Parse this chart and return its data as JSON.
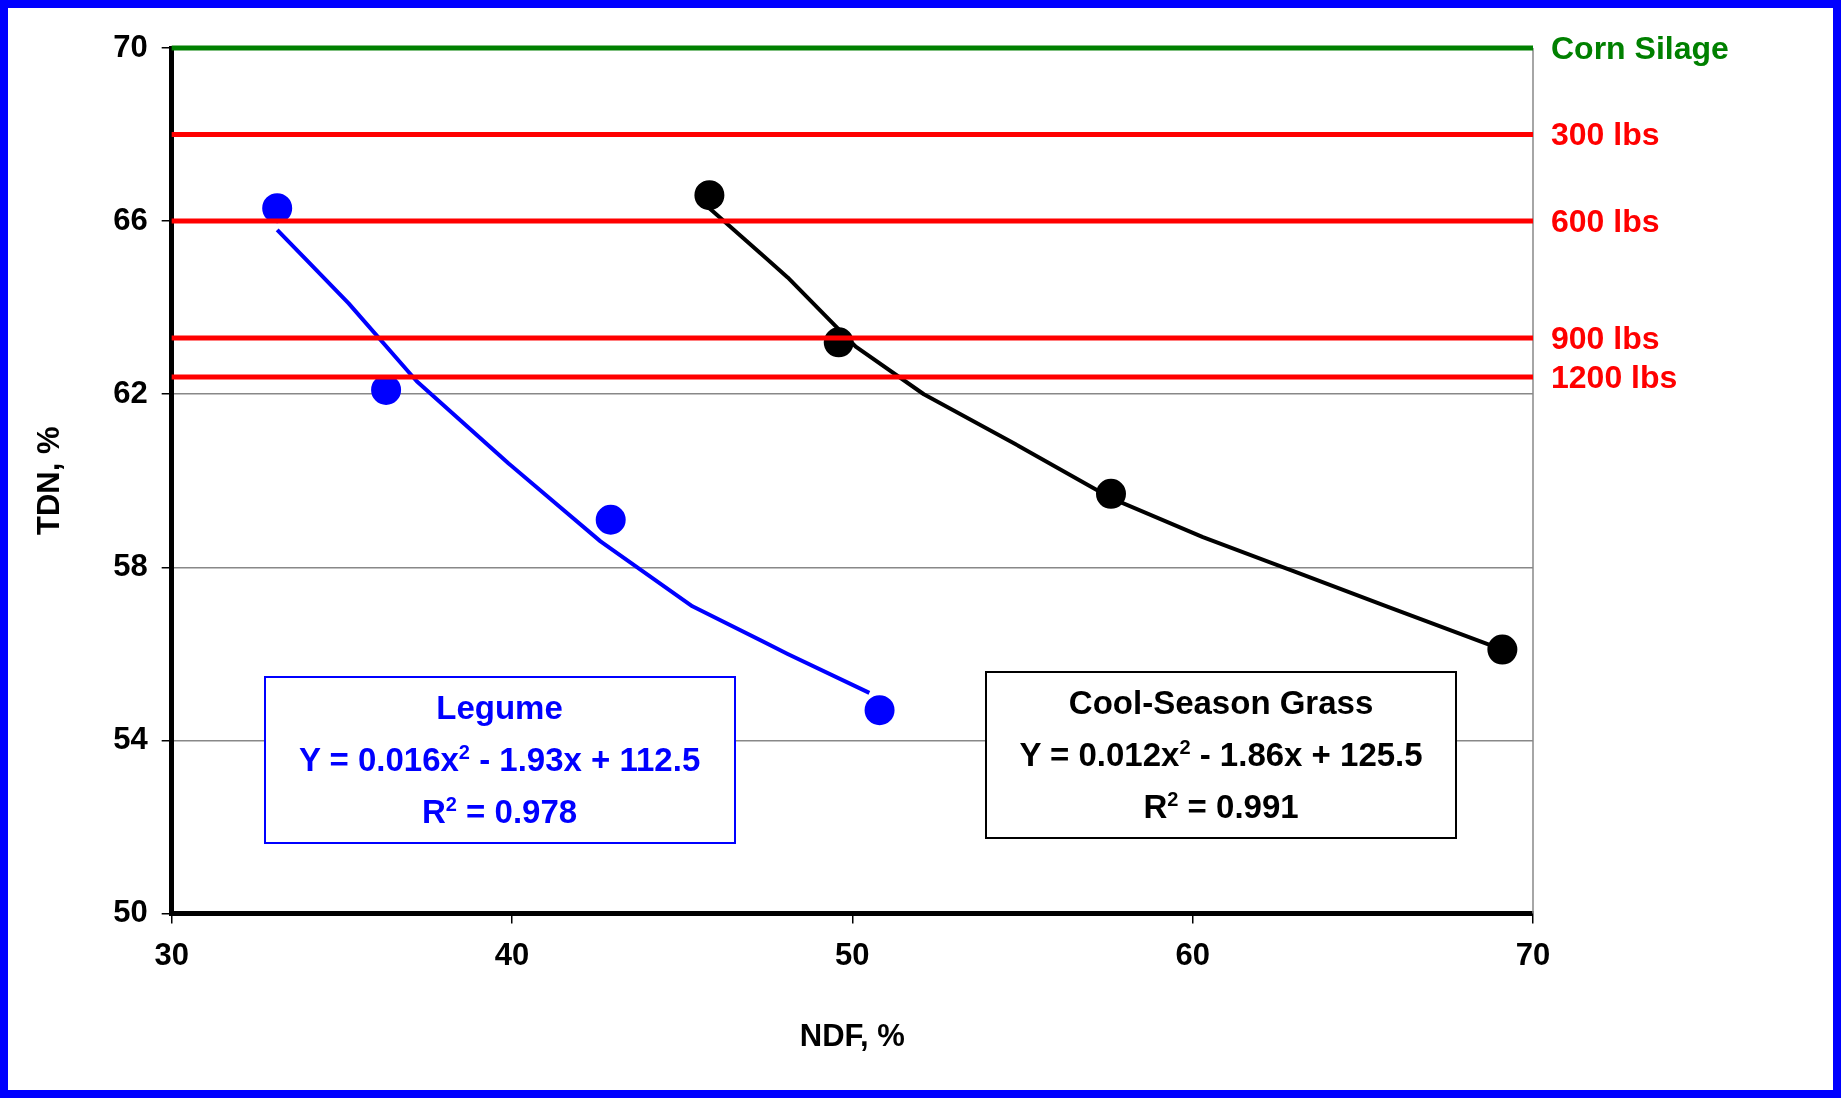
{
  "chart_data": {
    "type": "scatter",
    "xlabel": "NDF, %",
    "ylabel": "TDN, %",
    "xlim": [
      30,
      70
    ],
    "xticks": [
      30,
      40,
      50,
      60,
      70
    ],
    "ylim": [
      50,
      70
    ],
    "yticks": [
      50,
      54,
      58,
      62,
      66,
      70
    ],
    "grid": "y",
    "legend": false,
    "series": [
      {
        "type": "scatter",
        "name": "Legume",
        "color": "#0000ff",
        "marker": "circle",
        "x": [
          33.1,
          36.3,
          42.9,
          50.8
        ],
        "values": [
          66.3,
          62.1,
          59.1,
          54.7
        ]
      },
      {
        "type": "line",
        "color": "#0000ff",
        "marker": "none",
        "line_style": "solid",
        "x": [
          33.1,
          35.2,
          37.2,
          39.9,
          42.6,
          45.3,
          48.1,
          50.5
        ],
        "values": [
          65.8,
          64.1,
          62.3,
          60.4,
          58.6,
          57.1,
          56.0,
          55.1
        ]
      },
      {
        "type": "scatter",
        "name": "Cool-Season Grass",
        "color": "#000000",
        "marker": "circle",
        "x": [
          45.8,
          49.6,
          57.6,
          69.1
        ],
        "values": [
          66.6,
          63.2,
          59.7,
          56.1
        ]
      },
      {
        "type": "line",
        "color": "#000000",
        "marker": "none",
        "line_style": "solid",
        "x": [
          45.8,
          48.1,
          50.1,
          52.1,
          54.9,
          57.6,
          60.3,
          63.0,
          65.7,
          69.1
        ],
        "values": [
          66.3,
          64.7,
          63.1,
          62.0,
          60.8,
          59.6,
          58.7,
          57.9,
          57.1,
          56.1
        ]
      }
    ],
    "ref_lines": [
      {
        "axis": "y",
        "value": 70,
        "label": "Corn Silage",
        "color": "#008000"
      },
      {
        "axis": "y",
        "value": 68,
        "label": "300 lbs",
        "color": "#ff0000"
      },
      {
        "axis": "y",
        "value": 66,
        "label": "600 lbs",
        "color": "#ff0000"
      },
      {
        "axis": "y",
        "value": 63.3,
        "label": "900 lbs",
        "color": "#ff0000"
      },
      {
        "axis": "y",
        "value": 62.4,
        "label": "1200 lbs",
        "color": "#ff0000"
      }
    ],
    "annotations": [
      "Y = 0.016x$^{2}$ - 1.93x + 112.5",
      "R$^{2}$ = 0.978",
      "Y = 0.012x$^{2}$ - 1.86x + 125.5",
      "R$^{2}$ = 0.991"
    ]
  }
}
